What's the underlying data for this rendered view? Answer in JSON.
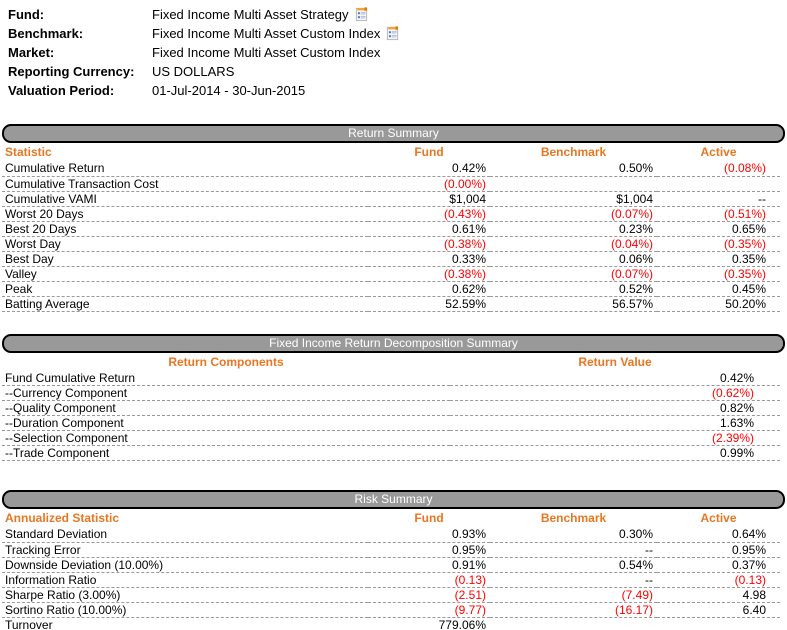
{
  "header": {
    "fields": [
      {
        "label": "Fund:",
        "value": "Fixed Income Multi Asset Strategy"
      },
      {
        "label": "Benchmark:",
        "value": "Fixed Income Multi Asset Custom Index"
      },
      {
        "label": "Market:",
        "value": "Fixed Income Multi Asset Custom Index"
      },
      {
        "label": "Reporting Currency:",
        "value": "US DOLLARS"
      },
      {
        "label": "Valuation Period:",
        "value": "01-Jul-2014 - 30-Jun-2015"
      }
    ],
    "icon": "report-icon"
  },
  "colors": {
    "accent_orange": "#e87722",
    "negative_red": "#ff0000",
    "bar_gray": "#999999",
    "bar_border": "#000000",
    "row_dash_gray": "#999999"
  },
  "sections": [
    {
      "title": "Return Summary",
      "columns": [
        "Statistic",
        "Fund",
        "Benchmark",
        "Active"
      ],
      "rows": [
        [
          "Cumulative Return",
          "0.42%",
          "0.50%",
          "(0.08%)"
        ],
        [
          "Cumulative Transaction Cost",
          "(0.00%)",
          "",
          ""
        ],
        [
          "Cumulative VAMI",
          "$1,004",
          "$1,004",
          "--"
        ],
        [
          "Worst 20 Days",
          "(0.43%)",
          "(0.07%)",
          "(0.51%)"
        ],
        [
          "Best 20 Days",
          "0.61%",
          "0.23%",
          "0.65%"
        ],
        [
          "Worst Day",
          "(0.38%)",
          "(0.04%)",
          "(0.35%)"
        ],
        [
          "Best Day",
          "0.33%",
          "0.06%",
          "0.35%"
        ],
        [
          "Valley",
          "(0.38%)",
          "(0.07%)",
          "(0.35%)"
        ],
        [
          "Peak",
          "0.62%",
          "0.52%",
          "0.45%"
        ],
        [
          "Batting Average",
          "52.59%",
          "56.57%",
          "50.20%"
        ]
      ]
    },
    {
      "title": "Fixed Income Return Decomposition Summary",
      "columns": [
        "Return Components",
        "Return Value"
      ],
      "rows": [
        [
          "Fund Cumulative Return",
          "0.42%"
        ],
        [
          "--Currency Component",
          "(0.62%)"
        ],
        [
          "--Quality Component",
          "0.82%"
        ],
        [
          "--Duration Component",
          "1.63%"
        ],
        [
          "--Selection Component",
          "(2.39%)"
        ],
        [
          "--Trade Component",
          "0.99%"
        ]
      ]
    },
    {
      "title": "Risk Summary",
      "columns": [
        "Annualized Statistic",
        "Fund",
        "Benchmark",
        "Active"
      ],
      "rows": [
        [
          "Standard Deviation",
          "0.93%",
          "0.30%",
          "0.64%"
        ],
        [
          "Tracking Error",
          "0.95%",
          "--",
          "0.95%"
        ],
        [
          "Downside Deviation (10.00%)",
          "0.91%",
          "0.54%",
          "0.37%"
        ],
        [
          "Information Ratio",
          "(0.13)",
          "--",
          "(0.13)"
        ],
        [
          "Sharpe Ratio (3.00%)",
          "(2.51)",
          "(7.49)",
          "4.98"
        ],
        [
          "Sortino Ratio (10.00%)",
          "(9.77)",
          "(16.17)",
          "6.40"
        ],
        [
          "Turnover",
          "779.06%",
          "",
          ""
        ]
      ]
    }
  ]
}
